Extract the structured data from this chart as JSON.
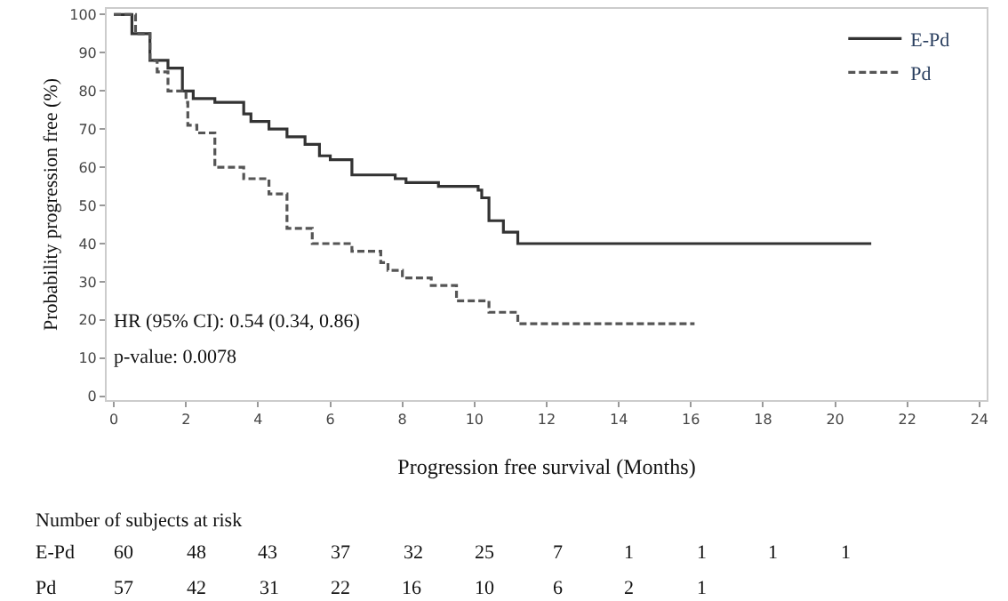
{
  "chart_data": {
    "type": "step",
    "xlabel": "Progression free survival (Months)",
    "ylabel": "Probability progression free (%)",
    "series": [
      {
        "name": "E-Pd",
        "color": "#333333",
        "line_style": "solid",
        "x": [
          0,
          0.5,
          1.0,
          1.5,
          1.9,
          2.2,
          2.8,
          3.6,
          3.8,
          4.3,
          4.8,
          5.3,
          5.7,
          6.0,
          6.6,
          7.8,
          8.1,
          9.0,
          10.1,
          10.2,
          10.4,
          10.8,
          11.2,
          21.0
        ],
        "values": [
          100,
          95,
          88,
          86,
          80,
          78,
          77,
          74,
          72,
          70,
          68,
          66,
          63,
          62,
          58,
          57,
          56,
          55,
          54,
          52,
          46,
          43,
          40,
          40
        ]
      },
      {
        "name": "Pd",
        "color": "#555555",
        "line_style": "dashed",
        "x": [
          0,
          0.6,
          1.0,
          1.2,
          1.5,
          2.0,
          2.05,
          2.3,
          2.8,
          3.6,
          4.3,
          4.8,
          5.5,
          6.6,
          7.4,
          7.6,
          8.0,
          8.8,
          9.5,
          10.4,
          11.2,
          16.1
        ],
        "values": [
          100,
          95,
          88,
          85,
          80,
          77,
          71,
          69,
          60,
          57,
          53,
          44,
          40,
          38,
          35,
          33,
          31,
          29,
          25,
          22,
          19,
          19
        ]
      }
    ],
    "xlim": [
      -0.2,
      24.2
    ],
    "ylim": [
      -1,
      101.5
    ],
    "xticks": [
      0,
      2,
      4,
      6,
      8,
      10,
      12,
      14,
      16,
      18,
      20,
      22,
      24
    ],
    "yticks": [
      0,
      10,
      20,
      30,
      40,
      50,
      60,
      70,
      80,
      90,
      100
    ],
    "grid": false,
    "legend": "top right",
    "annotations": [
      "HR (95% CI): 0.54 (0.34, 0.86)",
      "p-value: 0.0078",
      "Number of subjects at risk",
      "E-Pd",
      "60",
      "48",
      "43",
      "37",
      "32",
      "25",
      "7",
      "1",
      "1",
      "1",
      "1",
      "Pd",
      "57",
      "42",
      "31",
      "22",
      "16",
      "10",
      "6",
      "2",
      "1"
    ]
  }
}
